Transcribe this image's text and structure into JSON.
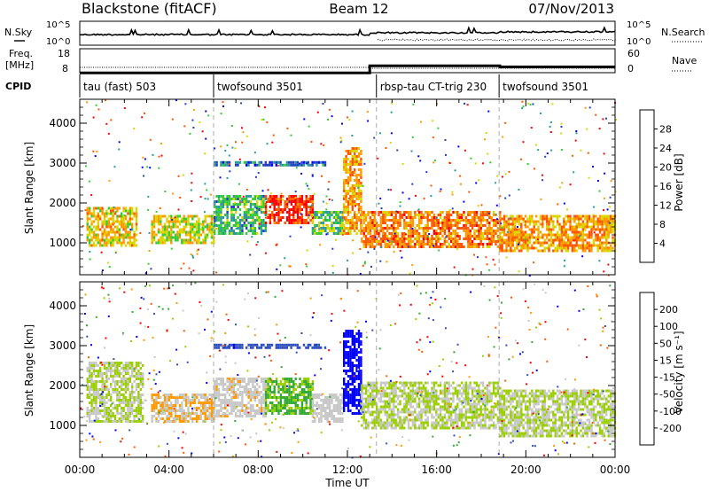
{
  "header": {
    "station": "Blackstone (fitACF)",
    "beam": "Beam 12",
    "date": "07/Nov/2013"
  },
  "noise_panel": {
    "left_label": "N.Sky",
    "left_ticks": [
      "10^5",
      "10^0"
    ],
    "right_ticks": [
      "10^5",
      "10^0"
    ],
    "right_label": "N.Search"
  },
  "freq_panel": {
    "left_label_line1": "Freq.",
    "left_label_line2": "[MHz]",
    "left_ticks": [
      "18",
      "8"
    ],
    "right_ticks": [
      "60",
      "0"
    ],
    "right_label": "Nave",
    "series": [
      {
        "segment": "00:00-13:00",
        "freq_mhz": 10.5
      },
      {
        "segment": "13:00-18:50",
        "freq_mhz": 13.5
      },
      {
        "segment": "18:50-24:00",
        "freq_mhz": 13.0
      }
    ]
  },
  "cpid": {
    "label": "CPID",
    "segments": [
      {
        "start_h": 0,
        "end_h": 6,
        "name": "tau (fast) 503"
      },
      {
        "start_h": 6,
        "end_h": 13.3,
        "name": "twofsound 3501"
      },
      {
        "start_h": 13.3,
        "end_h": 18.8,
        "name": "rbsp-tau CT-trig 230"
      },
      {
        "start_h": 18.8,
        "end_h": 24,
        "name": "twofsound 3501"
      }
    ]
  },
  "colors": {
    "power": [
      "#0000ff",
      "#2040c0",
      "#2a9a9a",
      "#33cc33",
      "#d8d800",
      "#ff9900",
      "#ff5500",
      "#ff0000"
    ],
    "velocity": [
      "#ff0000",
      "#ff5a00",
      "#ff9a00",
      "#c8c8c8",
      "#9ad000",
      "#33aa33",
      "#3050c0",
      "#0000ff"
    ]
  },
  "chart_data": [
    {
      "type": "heatmap",
      "panel": "power",
      "xlabel": "",
      "ylabel": "Slant Range [km]",
      "xlim_hours": [
        0,
        24
      ],
      "ylim_km": [
        200,
        4600
      ],
      "yticks": [
        1000,
        2000,
        3000,
        4000
      ],
      "colorbar": {
        "label": "Power [dB]",
        "ticks": [
          "28",
          "24",
          "20",
          "16",
          "12",
          "8",
          "4"
        ],
        "range": [
          0,
          32
        ]
      },
      "echo_regions": [
        {
          "t0": 0.3,
          "t1": 2.5,
          "r0": 900,
          "r1": 1900,
          "value": 20
        },
        {
          "t0": 3.2,
          "t1": 6.0,
          "r0": 1000,
          "r1": 1700,
          "value": 18
        },
        {
          "t0": 6.0,
          "t1": 8.3,
          "r0": 1200,
          "r1": 2200,
          "value": 12
        },
        {
          "t0": 8.3,
          "t1": 10.4,
          "r0": 1500,
          "r1": 2200,
          "value": 28
        },
        {
          "t0": 10.4,
          "t1": 11.8,
          "r0": 1200,
          "r1": 1800,
          "value": 14
        },
        {
          "t0": 11.8,
          "t1": 12.6,
          "r0": 1200,
          "r1": 3400,
          "value": 22
        },
        {
          "t0": 12.6,
          "t1": 18.8,
          "r0": 900,
          "r1": 1800,
          "value": 24
        },
        {
          "t0": 18.8,
          "t1": 24.0,
          "r0": 800,
          "r1": 1700,
          "value": 22
        },
        {
          "t0": 6.0,
          "t1": 11.0,
          "r0": 2950,
          "r1": 3050,
          "value": 8
        }
      ]
    },
    {
      "type": "heatmap",
      "panel": "velocity",
      "xlabel": "Time UT",
      "ylabel": "Slant Range [km]",
      "xlim_hours": [
        0,
        24
      ],
      "xticks": [
        "00:00",
        "04:00",
        "08:00",
        "12:00",
        "16:00",
        "20:00",
        "00:00"
      ],
      "ylim_km": [
        200,
        4600
      ],
      "yticks": [
        1000,
        2000,
        3000,
        4000
      ],
      "colorbar": {
        "label": "Velocity [m s⁻¹]",
        "ticks": [
          "200",
          "100",
          "50",
          "15",
          "-15",
          "-50",
          "-100",
          "-200"
        ],
        "range": [
          -250,
          250
        ]
      },
      "echo_regions": [
        {
          "t0": 0.3,
          "t1": 2.8,
          "r0": 1100,
          "r1": 2600,
          "value": 0
        },
        {
          "t0": 3.2,
          "t1": 6.0,
          "r0": 1100,
          "r1": 1800,
          "value": -60
        },
        {
          "t0": 6.0,
          "t1": 8.3,
          "r0": 1200,
          "r1": 2200,
          "value": -40
        },
        {
          "t0": 8.3,
          "t1": 10.4,
          "r0": 1300,
          "r1": 2200,
          "value": 70
        },
        {
          "t0": 10.4,
          "t1": 11.8,
          "r0": 1100,
          "r1": 1800,
          "value": -30
        },
        {
          "t0": 11.8,
          "t1": 12.6,
          "r0": 1300,
          "r1": 3400,
          "value": 220
        },
        {
          "t0": 12.6,
          "t1": 18.8,
          "r0": 900,
          "r1": 2100,
          "value": 0
        },
        {
          "t0": 18.8,
          "t1": 24.0,
          "r0": 700,
          "r1": 1900,
          "value": 0
        },
        {
          "t0": 6.0,
          "t1": 11.0,
          "r0": 2950,
          "r1": 3050,
          "value": 160
        }
      ]
    }
  ]
}
